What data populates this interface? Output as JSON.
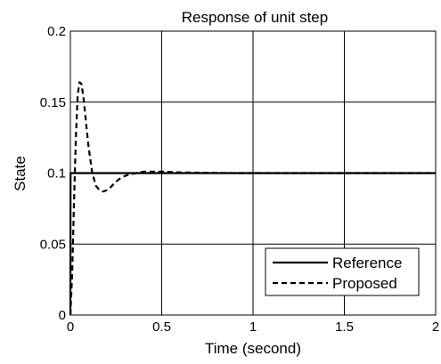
{
  "chart_data": {
    "type": "line",
    "title": "Response of unit step",
    "xlabel": "Time (second)",
    "ylabel": "State",
    "xlim": [
      0,
      2
    ],
    "ylim": [
      0,
      0.2
    ],
    "xticks": [
      0,
      0.5,
      1,
      1.5,
      2
    ],
    "xtick_labels": [
      "0",
      "0.5",
      "1",
      "1.5",
      "2"
    ],
    "yticks": [
      0,
      0.05,
      0.1,
      0.15,
      0.2
    ],
    "ytick_labels": [
      "0",
      "0.05",
      "0.1",
      "0.15",
      "0.2"
    ],
    "grid": true,
    "legend_position": "bottom-right",
    "series": [
      {
        "name": "Reference",
        "style": "solid",
        "color": "#000000",
        "x": [
          0,
          0.001,
          2
        ],
        "y": [
          0,
          0.1,
          0.1
        ]
      },
      {
        "name": "Proposed",
        "style": "dashed",
        "color": "#000000",
        "x": [
          0,
          0.01,
          0.02,
          0.03,
          0.04,
          0.05,
          0.06,
          0.07,
          0.08,
          0.09,
          0.1,
          0.12,
          0.14,
          0.16,
          0.18,
          0.2,
          0.22,
          0.25,
          0.28,
          0.32,
          0.36,
          0.4,
          0.45,
          0.5,
          0.6,
          0.7,
          0.8,
          0.9,
          1.0,
          1.5,
          2.0
        ],
        "y": [
          0,
          0.03,
          0.08,
          0.125,
          0.155,
          0.164,
          0.163,
          0.155,
          0.143,
          0.13,
          0.118,
          0.1,
          0.091,
          0.088,
          0.087,
          0.088,
          0.09,
          0.094,
          0.097,
          0.099,
          0.1,
          0.101,
          0.101,
          0.101,
          0.1005,
          0.1003,
          0.1001,
          0.1,
          0.1,
          0.1,
          0.1
        ]
      }
    ]
  }
}
